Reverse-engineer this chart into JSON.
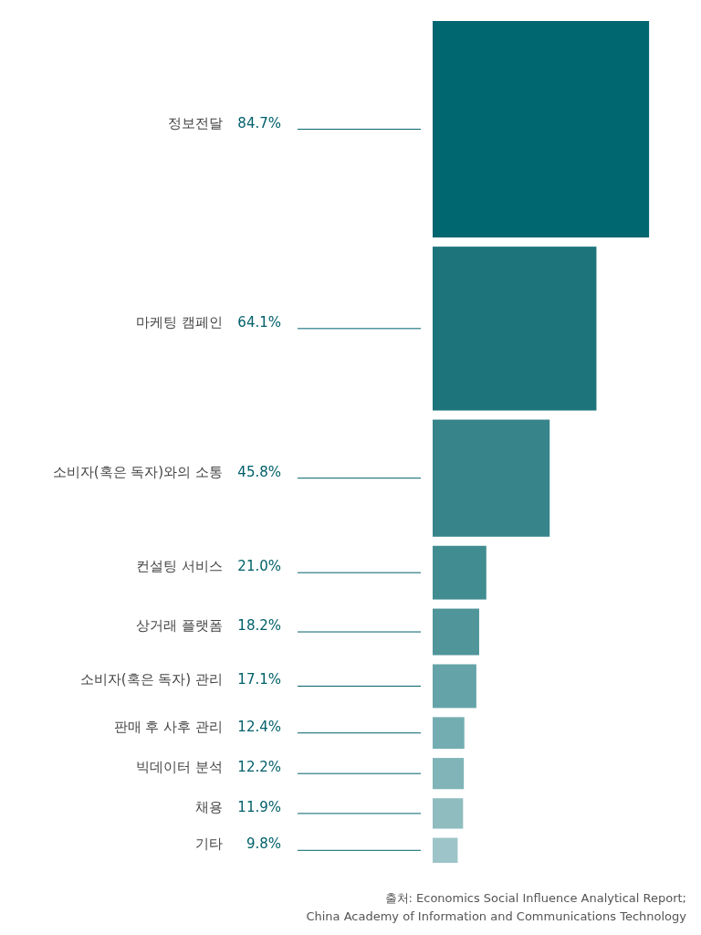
{
  "chart_data": {
    "type": "other",
    "categories": [
      "정보전달",
      "마케팅 캠페인",
      "소비자(혹은 독자)와의 소통",
      "컨설팅 서비스",
      "상거래 플랫폼",
      "소비자(혹은 독자) 관리",
      "판매 후 사후 관리",
      "빅데이터 분석",
      "채용",
      "기타"
    ],
    "values": [
      84.7,
      64.1,
      45.8,
      21.0,
      18.2,
      17.1,
      12.4,
      12.2,
      11.9,
      9.8
    ],
    "value_labels": [
      "84.7%",
      "64.1%",
      "45.8%",
      "21.0%",
      "18.2%",
      "17.1%",
      "12.4%",
      "12.2%",
      "11.9%",
      "9.8%"
    ],
    "colors": [
      "#006670",
      "#1d747b",
      "#37848a",
      "#418c91",
      "#4f959a",
      "#64a3a7",
      "#74adb1",
      "#80b4b8",
      "#8fbcbf",
      "#9dc5c9"
    ],
    "annotations": [
      "출처: Economics Social Influence Analytical Report;",
      "China Academy of Information and Communications Technology"
    ]
  }
}
